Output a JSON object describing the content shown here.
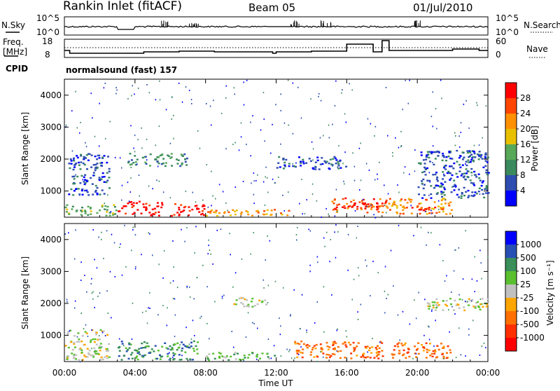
{
  "header": {
    "title": "Rankin Inlet (fitACF)",
    "beam": "Beam 05",
    "date": "01/Jul/2010"
  },
  "noise_panel": {
    "left_label": "N.Sky",
    "right_label": "N.Search",
    "left_ticks": [
      "10^5",
      "10^0"
    ],
    "right_ticks": [
      "10^5",
      "10^0"
    ]
  },
  "freq_panel": {
    "left_label_1": "Freq.",
    "left_label_2": "[MHz]",
    "right_label": "Nave",
    "left_ticks": [
      "18",
      "8"
    ],
    "right_ticks": [
      "60",
      "0"
    ]
  },
  "cpid": {
    "label": "CPID",
    "program": "normalsound (fast) 157"
  },
  "colors": {
    "power_scale": [
      "#0000ff",
      "#2d4db0",
      "#3b8a5e",
      "#58a85a",
      "#e8c000",
      "#ff9000",
      "#ff4500",
      "#ff0000"
    ],
    "velocity_scale": [
      "#0000ff",
      "#2850b4",
      "#3a8f5a",
      "#5ac030",
      "#c0c0c0",
      "#ffa500",
      "#ff7000",
      "#ff3000",
      "#ff0000"
    ]
  },
  "chart_data": [
    {
      "type": "heatmap",
      "panel": "power",
      "ylabel": "Slant Range [km]",
      "yticks": [
        "1000",
        "2000",
        "3000",
        "4000"
      ],
      "ylim": [
        180,
        4500
      ],
      "xticks": [
        "00:00",
        "04:00",
        "08:00",
        "12:00",
        "16:00",
        "20:00",
        "00:00"
      ],
      "xlim": [
        0,
        24
      ],
      "colorbar": {
        "label": "Power [dB]",
        "ticks": [
          "4",
          "8",
          "12",
          "16",
          "20",
          "24",
          "28"
        ]
      },
      "bands": [
        {
          "t0": 0.0,
          "t1": 3.0,
          "r0": 250,
          "r1": 600,
          "level": 3
        },
        {
          "t0": 3.0,
          "t1": 5.5,
          "r0": 250,
          "r1": 700,
          "level": 7
        },
        {
          "t0": 6.0,
          "t1": 8.0,
          "r0": 250,
          "r1": 650,
          "level": 7
        },
        {
          "t0": 8.0,
          "t1": 13.0,
          "r0": 250,
          "r1": 450,
          "level": 5
        },
        {
          "t0": 15.0,
          "t1": 18.5,
          "r0": 350,
          "r1": 800,
          "level": 6
        },
        {
          "t0": 15.8,
          "t1": 17.8,
          "r0": 450,
          "r1": 650,
          "level": 7
        },
        {
          "t0": 18.5,
          "t1": 22.0,
          "r0": 300,
          "r1": 800,
          "level": 5
        },
        {
          "t0": 19.5,
          "t1": 21.0,
          "r0": 400,
          "r1": 550,
          "level": 7
        },
        {
          "t0": 0.2,
          "t1": 2.5,
          "r0": 900,
          "r1": 2200,
          "level": 1
        },
        {
          "t0": 3.5,
          "t1": 7.0,
          "r0": 1800,
          "r1": 2200,
          "level": 2
        },
        {
          "t0": 12.0,
          "t1": 16.0,
          "r0": 1700,
          "r1": 2100,
          "level": 1
        },
        {
          "t0": 20.0,
          "t1": 24.0,
          "r0": 800,
          "r1": 2300,
          "level": 1
        }
      ]
    },
    {
      "type": "heatmap",
      "panel": "velocity",
      "ylabel": "Slant Range [km]",
      "xlabel": "Time UT",
      "yticks": [
        "1000",
        "2000",
        "3000",
        "4000"
      ],
      "ylim": [
        180,
        4500
      ],
      "xticks": [
        "00:00",
        "04:00",
        "08:00",
        "12:00",
        "16:00",
        "20:00",
        "00:00"
      ],
      "xlim": [
        0,
        24
      ],
      "colorbar": {
        "label": "Velocity [m s⁻¹]",
        "ticks": [
          "1000",
          "500",
          "100",
          "25",
          "-25",
          "-100",
          "-500",
          "-1000"
        ]
      },
      "bands": [
        {
          "t0": 0.0,
          "t1": 2.5,
          "r0": 250,
          "r1": 1200,
          "level": 4
        },
        {
          "t0": 3.0,
          "t1": 7.5,
          "r0": 250,
          "r1": 850,
          "level": 2
        },
        {
          "t0": 8.0,
          "t1": 12.0,
          "r0": 250,
          "r1": 500,
          "level": 3
        },
        {
          "t0": 9.5,
          "t1": 11.5,
          "r0": 1900,
          "r1": 2200,
          "level": 4
        },
        {
          "t0": 13.0,
          "t1": 18.0,
          "r0": 300,
          "r1": 850,
          "level": 6
        },
        {
          "t0": 18.5,
          "t1": 22.0,
          "r0": 300,
          "r1": 800,
          "level": 6
        },
        {
          "t0": 20.5,
          "t1": 24.0,
          "r0": 1800,
          "r1": 2200,
          "level": 4
        }
      ]
    }
  ]
}
